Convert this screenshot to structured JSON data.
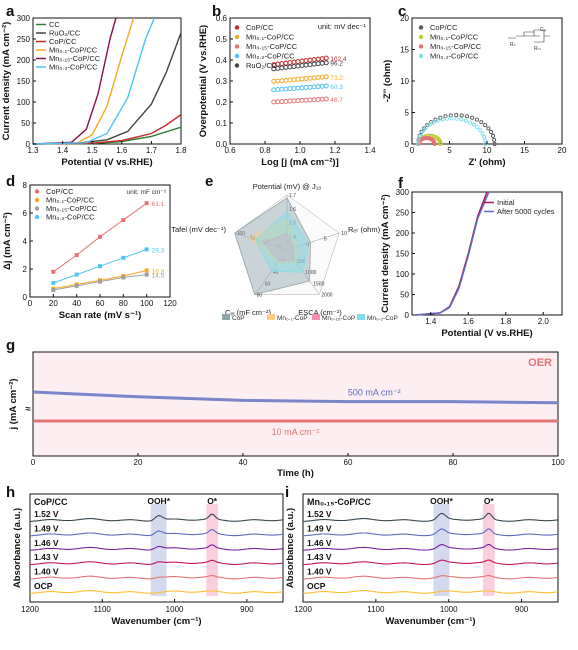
{
  "panels": {
    "a": {
      "label": "a"
    },
    "b": {
      "label": "b"
    },
    "c": {
      "label": "c"
    },
    "d": {
      "label": "d"
    },
    "e": {
      "label": "e"
    },
    "f": {
      "label": "f"
    },
    "g": {
      "label": "g"
    },
    "h": {
      "label": "h"
    },
    "i": {
      "label": "i"
    }
  },
  "chart_data": [
    {
      "id": "a",
      "type": "line",
      "xlabel": "Potential (V vs.RHE)",
      "ylabel": "Current density (mA cm⁻²)",
      "xlim": [
        1.3,
        1.8
      ],
      "ylim": [
        0,
        300
      ],
      "xticks": [
        "1.3",
        "1.4",
        "1.5",
        "1.6",
        "1.7",
        "1.8"
      ],
      "yticks": [
        "0",
        "50",
        "100",
        "150",
        "200",
        "250",
        "300"
      ],
      "legend": "top-left",
      "series": [
        {
          "name": "CC",
          "color": "#2e7d32",
          "x": [
            1.3,
            1.5,
            1.6,
            1.7,
            1.8
          ],
          "y": [
            0,
            1,
            6,
            18,
            40
          ]
        },
        {
          "name": "RuO₂/CC",
          "color": "#424242",
          "x": [
            1.3,
            1.45,
            1.55,
            1.62,
            1.7,
            1.75,
            1.8
          ],
          "y": [
            0,
            2,
            10,
            30,
            95,
            170,
            265
          ]
        },
        {
          "name": "CoP/CC",
          "color": "#c62828",
          "x": [
            1.3,
            1.5,
            1.6,
            1.7,
            1.75,
            1.8
          ],
          "y": [
            0,
            2,
            8,
            25,
            45,
            70
          ]
        },
        {
          "name": "Mn₀.₁-CoP/CC",
          "color": "#f9a825",
          "x": [
            1.3,
            1.45,
            1.5,
            1.55,
            1.6,
            1.64
          ],
          "y": [
            0,
            3,
            22,
            90,
            210,
            300
          ]
        },
        {
          "name": "Mn₀.₁₅-CoP/CC",
          "color": "#880e4f",
          "x": [
            1.3,
            1.43,
            1.48,
            1.52,
            1.56,
            1.58
          ],
          "y": [
            0,
            4,
            35,
            120,
            250,
            300
          ]
        },
        {
          "name": "Mn₀.₂-CoP/CC",
          "color": "#4fc3f7",
          "x": [
            1.3,
            1.48,
            1.55,
            1.62,
            1.68,
            1.71
          ],
          "y": [
            0,
            3,
            25,
            110,
            250,
            300
          ]
        }
      ]
    },
    {
      "id": "b",
      "type": "scatter",
      "xlabel": "Log [j (mA cm⁻²)]",
      "ylabel": "Overpotential (V vs.RHE)",
      "xlim": [
        0.6,
        1.4
      ],
      "ylim": [
        0.0,
        0.6
      ],
      "xticks": [
        "0.6",
        "0.8",
        "1.0",
        "1.2",
        "1.4"
      ],
      "yticks": [
        "0.0",
        "0.1",
        "0.2",
        "0.3",
        "0.4",
        "0.5",
        "0.6"
      ],
      "unit_note": "unit: mV dec⁻¹",
      "legend": "top-left",
      "series": [
        {
          "name": "CoP/CC",
          "color": "#c62828",
          "x": [
            0.85,
            1.15
          ],
          "y": [
            0.378,
            0.409
          ],
          "label": "102.4"
        },
        {
          "name": "Mn₀.₁-CoP/CC",
          "color": "#f9a825",
          "x": [
            0.85,
            1.15
          ],
          "y": [
            0.298,
            0.32
          ],
          "label": "73.2"
        },
        {
          "name": "Mn₀.₁₅-CoP/CC",
          "color": "#e57373",
          "x": [
            0.85,
            1.15
          ],
          "y": [
            0.2,
            0.214
          ],
          "label": "46.7"
        },
        {
          "name": "Mn₀.₂-CoP/CC",
          "color": "#4fc3f7",
          "x": [
            0.85,
            1.15
          ],
          "y": [
            0.258,
            0.276
          ],
          "label": "60.3"
        },
        {
          "name": "RuO₂/CC",
          "color": "#424242",
          "x": [
            0.85,
            1.15
          ],
          "y": [
            0.358,
            0.387
          ],
          "label": "96.2"
        }
      ]
    },
    {
      "id": "c",
      "type": "scatter",
      "xlabel": "Z' (ohm)",
      "ylabel": "-Z'' (ohm)",
      "xlim": [
        0,
        20
      ],
      "ylim": [
        0,
        20
      ],
      "xticks": [
        "0",
        "5",
        "10",
        "15",
        "20"
      ],
      "yticks": [
        "0",
        "5",
        "10",
        "15",
        "20"
      ],
      "legend": "top-left",
      "series": [
        {
          "name": "CoP/CC",
          "color": "#555555",
          "center": 6.0,
          "r0": 0.8,
          "r1": 11.0
        },
        {
          "name": "Mn₀.₁-CoP/CC",
          "color": "#c0ca33",
          "center": 2.3,
          "r0": 0.9,
          "r1": 3.8
        },
        {
          "name": "Mn₀.₁₅-CoP/CC",
          "color": "#e57373",
          "center": 1.9,
          "r0": 0.9,
          "r1": 3.0
        },
        {
          "name": "Mn₀.₂-CoP/CC",
          "color": "#80deea",
          "center": 5.3,
          "r0": 0.8,
          "r1": 9.8
        }
      ],
      "circuit_labels": [
        "Cₑₗ",
        "Rₛ",
        "Rₜₛ"
      ]
    },
    {
      "id": "d",
      "type": "scatter",
      "xlabel": "Scan rate (mV s⁻¹)",
      "ylabel": "Δj (mA cm⁻²)",
      "xlim": [
        0,
        120
      ],
      "ylim": [
        0,
        8
      ],
      "xticks": [
        "0",
        "20",
        "40",
        "60",
        "80",
        "100",
        "120"
      ],
      "yticks": [
        "0",
        "2",
        "4",
        "6",
        "8"
      ],
      "unit_note": "unit: mF cm⁻²",
      "legend": "top-left",
      "x": [
        20,
        40,
        60,
        80,
        100
      ],
      "series": [
        {
          "name": "CoP/CC",
          "color": "#e57373",
          "values": [
            1.8,
            3.0,
            4.3,
            5.5,
            6.7
          ],
          "label": "61.1"
        },
        {
          "name": "Mn₀.₁-CoP/CC",
          "color": "#f9a825",
          "values": [
            0.6,
            0.9,
            1.2,
            1.5,
            1.9
          ],
          "label": "16.8"
        },
        {
          "name": "Mn₀.₁₅-CoP/CC",
          "color": "#9e9e9e",
          "values": [
            0.5,
            0.8,
            1.1,
            1.4,
            1.6
          ],
          "label": "14.5"
        },
        {
          "name": "Mn₀.₂-CoP/CC",
          "color": "#4fc3f7",
          "values": [
            1.0,
            1.6,
            2.2,
            2.8,
            3.4
          ],
          "label": "29.3"
        }
      ]
    },
    {
      "id": "e",
      "type": "radar",
      "axes": [
        "Potential (mV) @ J₁₀",
        "Rₑₜ (ohm)",
        "ESCA (cm⁻²)",
        "Cₑₗ (mF cm⁻²)",
        "Tafel (mV dec⁻¹)"
      ],
      "axis_ticks": [
        [
          "1.4",
          "1.5",
          "1.6",
          "1.7"
        ],
        [
          "0",
          "5",
          "10"
        ],
        [
          "500",
          "1000",
          "1500",
          "2000"
        ],
        [
          "20",
          "40",
          "60",
          "80"
        ],
        [
          "40",
          "60",
          "80",
          "100"
        ]
      ],
      "legend": "bottom",
      "series": [
        {
          "name": "CoP",
          "color": "#90a4ae",
          "values": [
            0.95,
            0.45,
            0.7,
            1.0,
            1.0
          ]
        },
        {
          "name": "Mn₀.₁-CoP",
          "color": "#ffcc80",
          "values": [
            0.55,
            0.18,
            0.28,
            0.28,
            0.72
          ]
        },
        {
          "name": "Mn₀.₁₅-CoP",
          "color": "#f48fb1",
          "values": [
            0.3,
            0.12,
            0.22,
            0.24,
            0.45
          ]
        },
        {
          "name": "Mn₀.₂-CoP",
          "color": "#80deea",
          "values": [
            0.7,
            0.4,
            0.5,
            0.48,
            0.6
          ]
        }
      ]
    },
    {
      "id": "f",
      "type": "line",
      "xlabel": "Potential (V vs.RHE)",
      "ylabel": "Current density (mA cm⁻²)",
      "xlim": [
        1.3,
        2.1
      ],
      "ylim": [
        0,
        300
      ],
      "xticks": [
        "1.4",
        "1.6",
        "1.8",
        "2.0"
      ],
      "yticks": [
        "0",
        "50",
        "100",
        "150",
        "200",
        "250",
        "300"
      ],
      "legend": "top-right",
      "series": [
        {
          "name": "Initial",
          "color": "#ad1457",
          "x": [
            1.32,
            1.45,
            1.5,
            1.55,
            1.6,
            1.65,
            1.7
          ],
          "y": [
            0,
            5,
            20,
            70,
            150,
            240,
            300
          ]
        },
        {
          "name": "After 5000 cycles",
          "color": "#5c6bc0",
          "x": [
            1.32,
            1.45,
            1.5,
            1.55,
            1.6,
            1.65,
            1.71
          ],
          "y": [
            0,
            5,
            18,
            65,
            145,
            235,
            300
          ]
        }
      ]
    },
    {
      "id": "g",
      "type": "line",
      "xlabel": "Time (h)",
      "ylabel": "j (mA cm⁻²)",
      "xlim": [
        0,
        100
      ],
      "xticks": [
        "0",
        "20",
        "40",
        "60",
        "80",
        "100"
      ],
      "annotation": "OER",
      "series": [
        {
          "name": "500 mA cm⁻²",
          "color": "#7986cb",
          "x": [
            0,
            20,
            40,
            60,
            80,
            100
          ],
          "y": [
            500,
            496,
            493,
            492,
            492,
            491
          ]
        },
        {
          "name": "10 mA cm⁻²",
          "color": "#e57373",
          "x": [
            0,
            20,
            40,
            60,
            80,
            100
          ],
          "y": [
            10,
            10,
            10,
            10,
            10,
            10
          ]
        }
      ]
    },
    {
      "id": "h",
      "type": "line",
      "title": "CoP/CC",
      "xlabel": "Wavenumber (cm⁻¹)",
      "ylabel": "Absorbance (a.u.)",
      "xlim": [
        1200,
        850
      ],
      "xticks": [
        "1200",
        "1100",
        "1000",
        "900"
      ],
      "bands": [
        {
          "name": "OOH*",
          "center": 1022,
          "width": 22,
          "color": "#3f51b5"
        },
        {
          "name": "O*",
          "center": 948,
          "width": 16,
          "color": "#e91e63"
        }
      ],
      "series": [
        {
          "name": "1.52 V",
          "color": "#37474f"
        },
        {
          "name": "1.49 V",
          "color": "#5c6bc0"
        },
        {
          "name": "1.46 V",
          "color": "#7b1fa2"
        },
        {
          "name": "1.43 V",
          "color": "#c2185b"
        },
        {
          "name": "1.40 V",
          "color": "#e57373"
        },
        {
          "name": "OCP",
          "color": "#fbc02d"
        }
      ]
    },
    {
      "id": "i",
      "type": "line",
      "title": "Mn₀.₁₅-CoP/CC",
      "xlabel": "Wavenumber (cm⁻¹)",
      "ylabel": "Absorbance (a.u.)",
      "xlim": [
        1200,
        850
      ],
      "xticks": [
        "1200",
        "1100",
        "1000",
        "900"
      ],
      "bands": [
        {
          "name": "OOH*",
          "center": 1010,
          "width": 22,
          "color": "#3f51b5"
        },
        {
          "name": "O*",
          "center": 945,
          "width": 16,
          "color": "#e91e63"
        }
      ],
      "series": [
        {
          "name": "1.52 V",
          "color": "#37474f"
        },
        {
          "name": "1.49 V",
          "color": "#5c6bc0"
        },
        {
          "name": "1.46 V",
          "color": "#7b1fa2"
        },
        {
          "name": "1.43 V",
          "color": "#c2185b"
        },
        {
          "name": "1.40 V",
          "color": "#e57373"
        },
        {
          "name": "OCP",
          "color": "#fbc02d"
        }
      ]
    }
  ]
}
